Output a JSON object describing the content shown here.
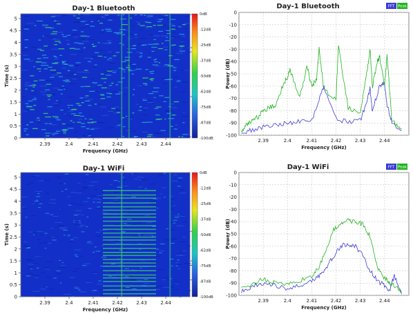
{
  "colors": {
    "fft": "#3b3bd6",
    "peak": "#1fb31f",
    "spec_bg": "#1230c8"
  },
  "chart_data": [
    {
      "type": "heatmap",
      "title": "Day-1 Bluetooth",
      "xlabel": "Frequency (GHz)",
      "ylabel": "Time (s)",
      "xlim": [
        2.38,
        2.45
      ],
      "ylim": [
        0,
        5.2
      ],
      "xticks": [
        "2.39",
        "2.4",
        "2.41",
        "2.42",
        "2.43",
        "2.44"
      ],
      "yticks": [
        "0",
        "0.5",
        "1",
        "1.5",
        "2",
        "2.5",
        "3",
        "3.5",
        "4",
        "4.5",
        "5"
      ],
      "colorbar": [
        "0dB",
        "-12dB",
        "-25dB",
        "-37dB",
        "-50dB",
        "-62dB",
        "-75dB",
        "-87dB",
        "-100dB"
      ],
      "mode": "bluetooth"
    },
    {
      "type": "line",
      "title": "Day-1 Bluetooth",
      "xlabel": "Frequency (GHz)",
      "ylabel": "Power (dB)",
      "xlim": [
        2.38,
        2.45
      ],
      "ylim": [
        -100,
        0
      ],
      "grid": true,
      "legend": "top-right",
      "xticks": [
        "2.39",
        "2.4",
        "2.41",
        "2.42",
        "2.43",
        "2.44"
      ],
      "yticks": [
        "0",
        "-10",
        "-20",
        "-30",
        "-40",
        "-50",
        "-60",
        "-70",
        "-80",
        "-90",
        "-100"
      ],
      "series": [
        {
          "name": "FFT",
          "x": [
            2.381,
            2.385,
            2.39,
            2.395,
            2.4,
            2.405,
            2.41,
            2.413,
            2.415,
            2.42,
            2.425,
            2.43,
            2.433,
            2.434,
            2.435,
            2.438,
            2.44,
            2.441,
            2.443,
            2.447
          ],
          "y": [
            -98,
            -96,
            -93,
            -91,
            -90,
            -89,
            -88,
            -70,
            -60,
            -87,
            -89,
            -88,
            -70,
            -62,
            -80,
            -60,
            -58,
            -75,
            -90,
            -96
          ]
        },
        {
          "name": "Peak",
          "x": [
            2.381,
            2.383,
            2.385,
            2.388,
            2.39,
            2.393,
            2.395,
            2.398,
            2.4,
            2.401,
            2.405,
            2.408,
            2.41,
            2.412,
            2.413,
            2.415,
            2.42,
            2.421,
            2.425,
            2.43,
            2.433,
            2.434,
            2.435,
            2.437,
            2.438,
            2.44,
            2.441,
            2.443,
            2.447
          ],
          "y": [
            -97,
            -92,
            -88,
            -85,
            -80,
            -77,
            -75,
            -60,
            -52,
            -46,
            -70,
            -44,
            -60,
            -55,
            -30,
            -63,
            -70,
            -27,
            -78,
            -82,
            -45,
            -30,
            -60,
            -40,
            -36,
            -60,
            -35,
            -88,
            -95
          ]
        }
      ]
    },
    {
      "type": "heatmap",
      "title": "Day-1 WiFi",
      "xlabel": "Frequency (GHz)",
      "ylabel": "Time (s)",
      "xlim": [
        2.38,
        2.45
      ],
      "ylim": [
        0,
        5.2
      ],
      "xticks": [
        "2.39",
        "2.4",
        "2.41",
        "2.42",
        "2.43",
        "2.44"
      ],
      "yticks": [
        "0",
        "0.5",
        "1",
        "1.5",
        "2",
        "2.5",
        "3",
        "3.5",
        "4",
        "4.5",
        "5"
      ],
      "colorbar": [
        "0dB",
        "-12dB",
        "-25dB",
        "-37dB",
        "-50dB",
        "-62dB",
        "-75dB",
        "-87dB",
        "-100dB"
      ],
      "mode": "wifi"
    },
    {
      "type": "line",
      "title": "Day-1 WiFi",
      "xlabel": "Frequency (GHz)",
      "ylabel": "Power (dB)",
      "xlim": [
        2.38,
        2.45
      ],
      "ylim": [
        -100,
        0
      ],
      "grid": true,
      "legend": "top-right",
      "xticks": [
        "2.39",
        "2.4",
        "2.41",
        "2.42",
        "2.43",
        "2.44"
      ],
      "yticks": [
        "0",
        "-10",
        "-20",
        "-30",
        "-40",
        "-50",
        "-60",
        "-70",
        "-80",
        "-90",
        "-100"
      ],
      "series": [
        {
          "name": "FFT",
          "x": [
            2.381,
            2.385,
            2.39,
            2.395,
            2.4,
            2.405,
            2.41,
            2.413,
            2.416,
            2.419,
            2.422,
            2.425,
            2.428,
            2.431,
            2.434,
            2.437,
            2.44,
            2.442,
            2.444,
            2.447
          ],
          "y": [
            -97,
            -93,
            -90,
            -92,
            -95,
            -92,
            -88,
            -84,
            -78,
            -68,
            -60,
            -58,
            -60,
            -68,
            -80,
            -88,
            -92,
            -96,
            -84,
            -99
          ]
        },
        {
          "name": "Peak",
          "x": [
            2.381,
            2.385,
            2.39,
            2.395,
            2.4,
            2.405,
            2.41,
            2.413,
            2.416,
            2.419,
            2.422,
            2.425,
            2.428,
            2.431,
            2.434,
            2.437,
            2.44,
            2.442,
            2.445,
            2.447
          ],
          "y": [
            -95,
            -91,
            -87,
            -90,
            -92,
            -88,
            -84,
            -78,
            -62,
            -47,
            -41,
            -39,
            -40,
            -42,
            -52,
            -78,
            -86,
            -90,
            -94,
            -97
          ]
        }
      ]
    }
  ]
}
